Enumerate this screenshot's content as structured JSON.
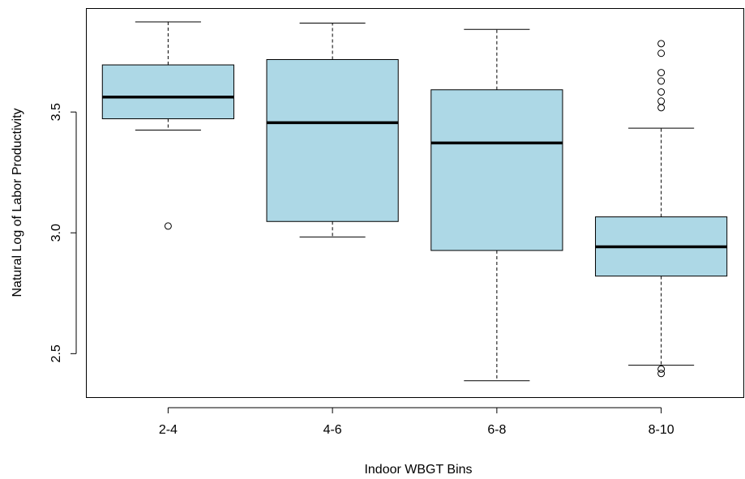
{
  "chart_data": {
    "type": "boxplot",
    "xlabel": "Indoor WBGT Bins",
    "ylabel": "Natural Log of Labor Productivity",
    "ylim": [
      2.32,
      3.93
    ],
    "yticks": [
      2.5,
      3.0,
      3.5
    ],
    "ytick_labels": [
      "2.5",
      "3.0",
      "3.5"
    ],
    "categories": [
      "2-4",
      "4-6",
      "6-8",
      "8-10"
    ],
    "fill_color": "#add8e6",
    "line_color": "#000000",
    "boxes": [
      {
        "category": "2-4",
        "whisker_low": 3.425,
        "q1": 3.472,
        "median": 3.562,
        "q3": 3.695,
        "whisker_high": 3.873,
        "outliers": [
          3.028
        ]
      },
      {
        "category": "4-6",
        "whisker_low": 2.983,
        "q1": 3.047,
        "median": 3.456,
        "q3": 3.717,
        "whisker_high": 3.868,
        "outliers": []
      },
      {
        "category": "6-8",
        "whisker_low": 2.388,
        "q1": 2.927,
        "median": 3.372,
        "q3": 3.592,
        "whisker_high": 3.842,
        "outliers": []
      },
      {
        "category": "8-10",
        "whisker_low": 2.452,
        "q1": 2.821,
        "median": 2.942,
        "q3": 3.066,
        "whisker_high": 3.433,
        "outliers": [
          2.418,
          2.436,
          3.518,
          3.545,
          3.583,
          3.628,
          3.663,
          3.743,
          3.783
        ]
      }
    ]
  }
}
